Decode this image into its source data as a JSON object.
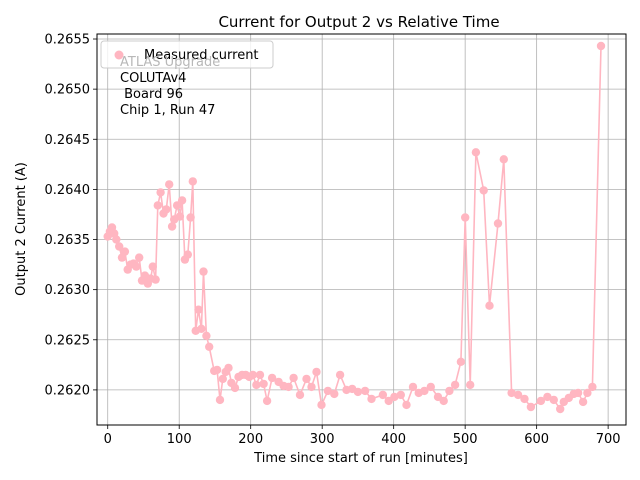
{
  "chart_data": {
    "type": "line",
    "title": "Current for Output 2 vs Relative Time",
    "xlabel": "Time since start of run [minutes]",
    "ylabel": "Output 2 Current (A)",
    "xlim": [
      -15,
      725
    ],
    "ylim": [
      0.26165,
      0.26555
    ],
    "xticks": [
      0,
      100,
      200,
      300,
      400,
      500,
      600,
      700
    ],
    "yticks": [
      0.262,
      0.2625,
      0.263,
      0.2635,
      0.264,
      0.2645,
      0.265,
      0.2655
    ],
    "xtick_labels": [
      "0",
      "100",
      "200",
      "300",
      "400",
      "500",
      "600",
      "700"
    ],
    "ytick_labels": [
      "0.2620",
      "0.2625",
      "0.2630",
      "0.2635",
      "0.2640",
      "0.2645",
      "0.2650",
      "0.2655"
    ],
    "grid": true,
    "legend": "upper left",
    "series": [
      {
        "name": "Measured current",
        "color": "#ffb6c1",
        "marker": "circle",
        "x": [
          0,
          3,
          6,
          9,
          12,
          16,
          20,
          24,
          28,
          32,
          36,
          40,
          44,
          48,
          52,
          56,
          60,
          63,
          67,
          70,
          74,
          78,
          82,
          86,
          90,
          93,
          97,
          101,
          104,
          108,
          112,
          116,
          119,
          123,
          127,
          131,
          134,
          138,
          142,
          149,
          153,
          157,
          161,
          165,
          169,
          173,
          178,
          183,
          188,
          193,
          198,
          203,
          208,
          213,
          218,
          223,
          230,
          239,
          246,
          253,
          260,
          269,
          278,
          285,
          292,
          299,
          308,
          317,
          325,
          334,
          342,
          350,
          360,
          369,
          385,
          393,
          401,
          410,
          418,
          427,
          435,
          443,
          452,
          462,
          470,
          478,
          486,
          494,
          500,
          507,
          515,
          526,
          534,
          546,
          554,
          565,
          574,
          583,
          592,
          606,
          615,
          624,
          633,
          638,
          645,
          652,
          658,
          665,
          671,
          678,
          690
        ],
        "y": [
          0.26353,
          0.26358,
          0.26362,
          0.26356,
          0.2635,
          0.26343,
          0.26332,
          0.26338,
          0.2632,
          0.26325,
          0.26326,
          0.26323,
          0.26332,
          0.26309,
          0.26314,
          0.26306,
          0.26311,
          0.26323,
          0.2631,
          0.26384,
          0.26397,
          0.26376,
          0.2638,
          0.26405,
          0.26363,
          0.2637,
          0.26384,
          0.26373,
          0.26389,
          0.2633,
          0.26335,
          0.26372,
          0.26408,
          0.26259,
          0.2628,
          0.26261,
          0.26318,
          0.26254,
          0.26243,
          0.26219,
          0.2622,
          0.2619,
          0.26211,
          0.26218,
          0.26222,
          0.26207,
          0.26202,
          0.26213,
          0.26215,
          0.26215,
          0.26213,
          0.26215,
          0.26205,
          0.26215,
          0.26206,
          0.26189,
          0.26212,
          0.26208,
          0.26204,
          0.26203,
          0.26212,
          0.26195,
          0.26211,
          0.26203,
          0.26218,
          0.26185,
          0.26199,
          0.26196,
          0.26215,
          0.262,
          0.26201,
          0.26198,
          0.26199,
          0.26191,
          0.26195,
          0.26189,
          0.26193,
          0.26195,
          0.26185,
          0.26203,
          0.26197,
          0.26199,
          0.26203,
          0.26193,
          0.26189,
          0.26199,
          0.26205,
          0.26228,
          0.26372,
          0.26205,
          0.26437,
          0.26399,
          0.26284,
          0.26366,
          0.2643,
          0.26197,
          0.26195,
          0.26191,
          0.26183,
          0.26189,
          0.26193,
          0.2619,
          0.26181,
          0.26188,
          0.26192,
          0.26196,
          0.26197,
          0.26188,
          0.26197,
          0.26203,
          0.26543
        ]
      }
    ],
    "annotations": {
      "watermark": "ATLAS Upgrade",
      "lines": [
        "COLUTAv4",
        " Board 96",
        "Chip 1, Run 47"
      ]
    }
  }
}
